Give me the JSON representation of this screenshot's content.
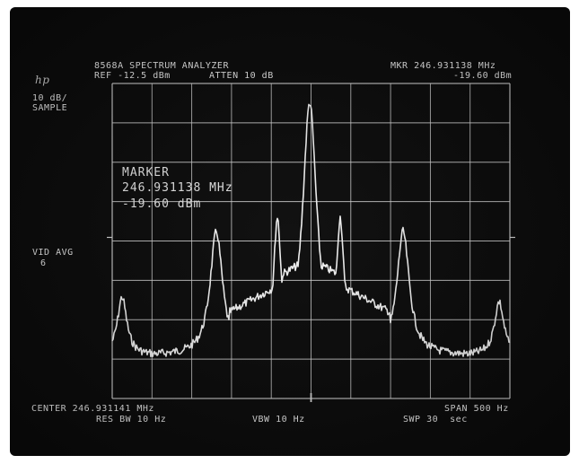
{
  "header": {
    "logo": "hp",
    "model": "8568A SPECTRUM ANALYZER",
    "ref_level": "REF -12.5 dBm",
    "attenuation": "ATTEN 10 dB",
    "marker_freq": "MKR 246.931138 MHz",
    "marker_level": "-19.60 dBm"
  },
  "left_panel": {
    "scale_line1": "10 dB/",
    "scale_line2": "SAMPLE",
    "vid_avg_label": "VID AVG",
    "vid_avg_value": "6"
  },
  "marker_readout": {
    "title": "MARKER",
    "frequency": "246.931138 MHz",
    "level": "-19.60 dBm"
  },
  "footer": {
    "center_freq": "CENTER 246.931141 MHz",
    "span": "SPAN 500 Hz",
    "res_bw": "RES BW 10 Hz",
    "vbw": "VBW 10 Hz",
    "sweep": "SWP 30  sec"
  },
  "colors": {
    "screen_bg": "#0a0a0a",
    "trace": "#f2f2f2",
    "graticule": "#d8d8d8",
    "text": "#e6e6e6"
  }
}
